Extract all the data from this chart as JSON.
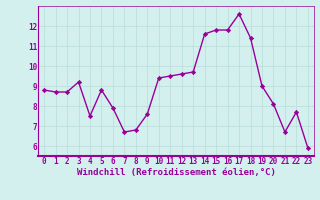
{
  "x": [
    0,
    1,
    2,
    3,
    4,
    5,
    6,
    7,
    8,
    9,
    10,
    11,
    12,
    13,
    14,
    15,
    16,
    17,
    18,
    19,
    20,
    21,
    22,
    23
  ],
  "y": [
    8.8,
    8.7,
    8.7,
    9.2,
    7.5,
    8.8,
    7.9,
    6.7,
    6.8,
    7.6,
    9.4,
    9.5,
    9.6,
    9.7,
    11.6,
    11.8,
    11.8,
    12.6,
    11.4,
    9.0,
    8.1,
    6.7,
    7.7,
    5.9
  ],
  "line_color": "#990099",
  "marker": "D",
  "marker_size": 2.2,
  "linewidth": 1.0,
  "xlabel": "Windchill (Refroidissement éolien,°C)",
  "xlabel_fontsize": 6.5,
  "ylabel_ticks": [
    6,
    7,
    8,
    9,
    10,
    11,
    12
  ],
  "xtick_labels": [
    "0",
    "1",
    "2",
    "3",
    "4",
    "5",
    "6",
    "7",
    "8",
    "9",
    "10",
    "11",
    "12",
    "13",
    "14",
    "15",
    "16",
    "17",
    "18",
    "19",
    "20",
    "21",
    "22",
    "23"
  ],
  "xlim": [
    -0.5,
    23.5
  ],
  "ylim": [
    5.5,
    13.0
  ],
  "bg_color": "#d3f0ee",
  "grid_color": "#b8dcd8",
  "tick_color": "#990099",
  "label_color": "#990099",
  "tick_fontsize": 5.5,
  "spine_color": "#990099",
  "bottom_line_color": "#7700aa"
}
